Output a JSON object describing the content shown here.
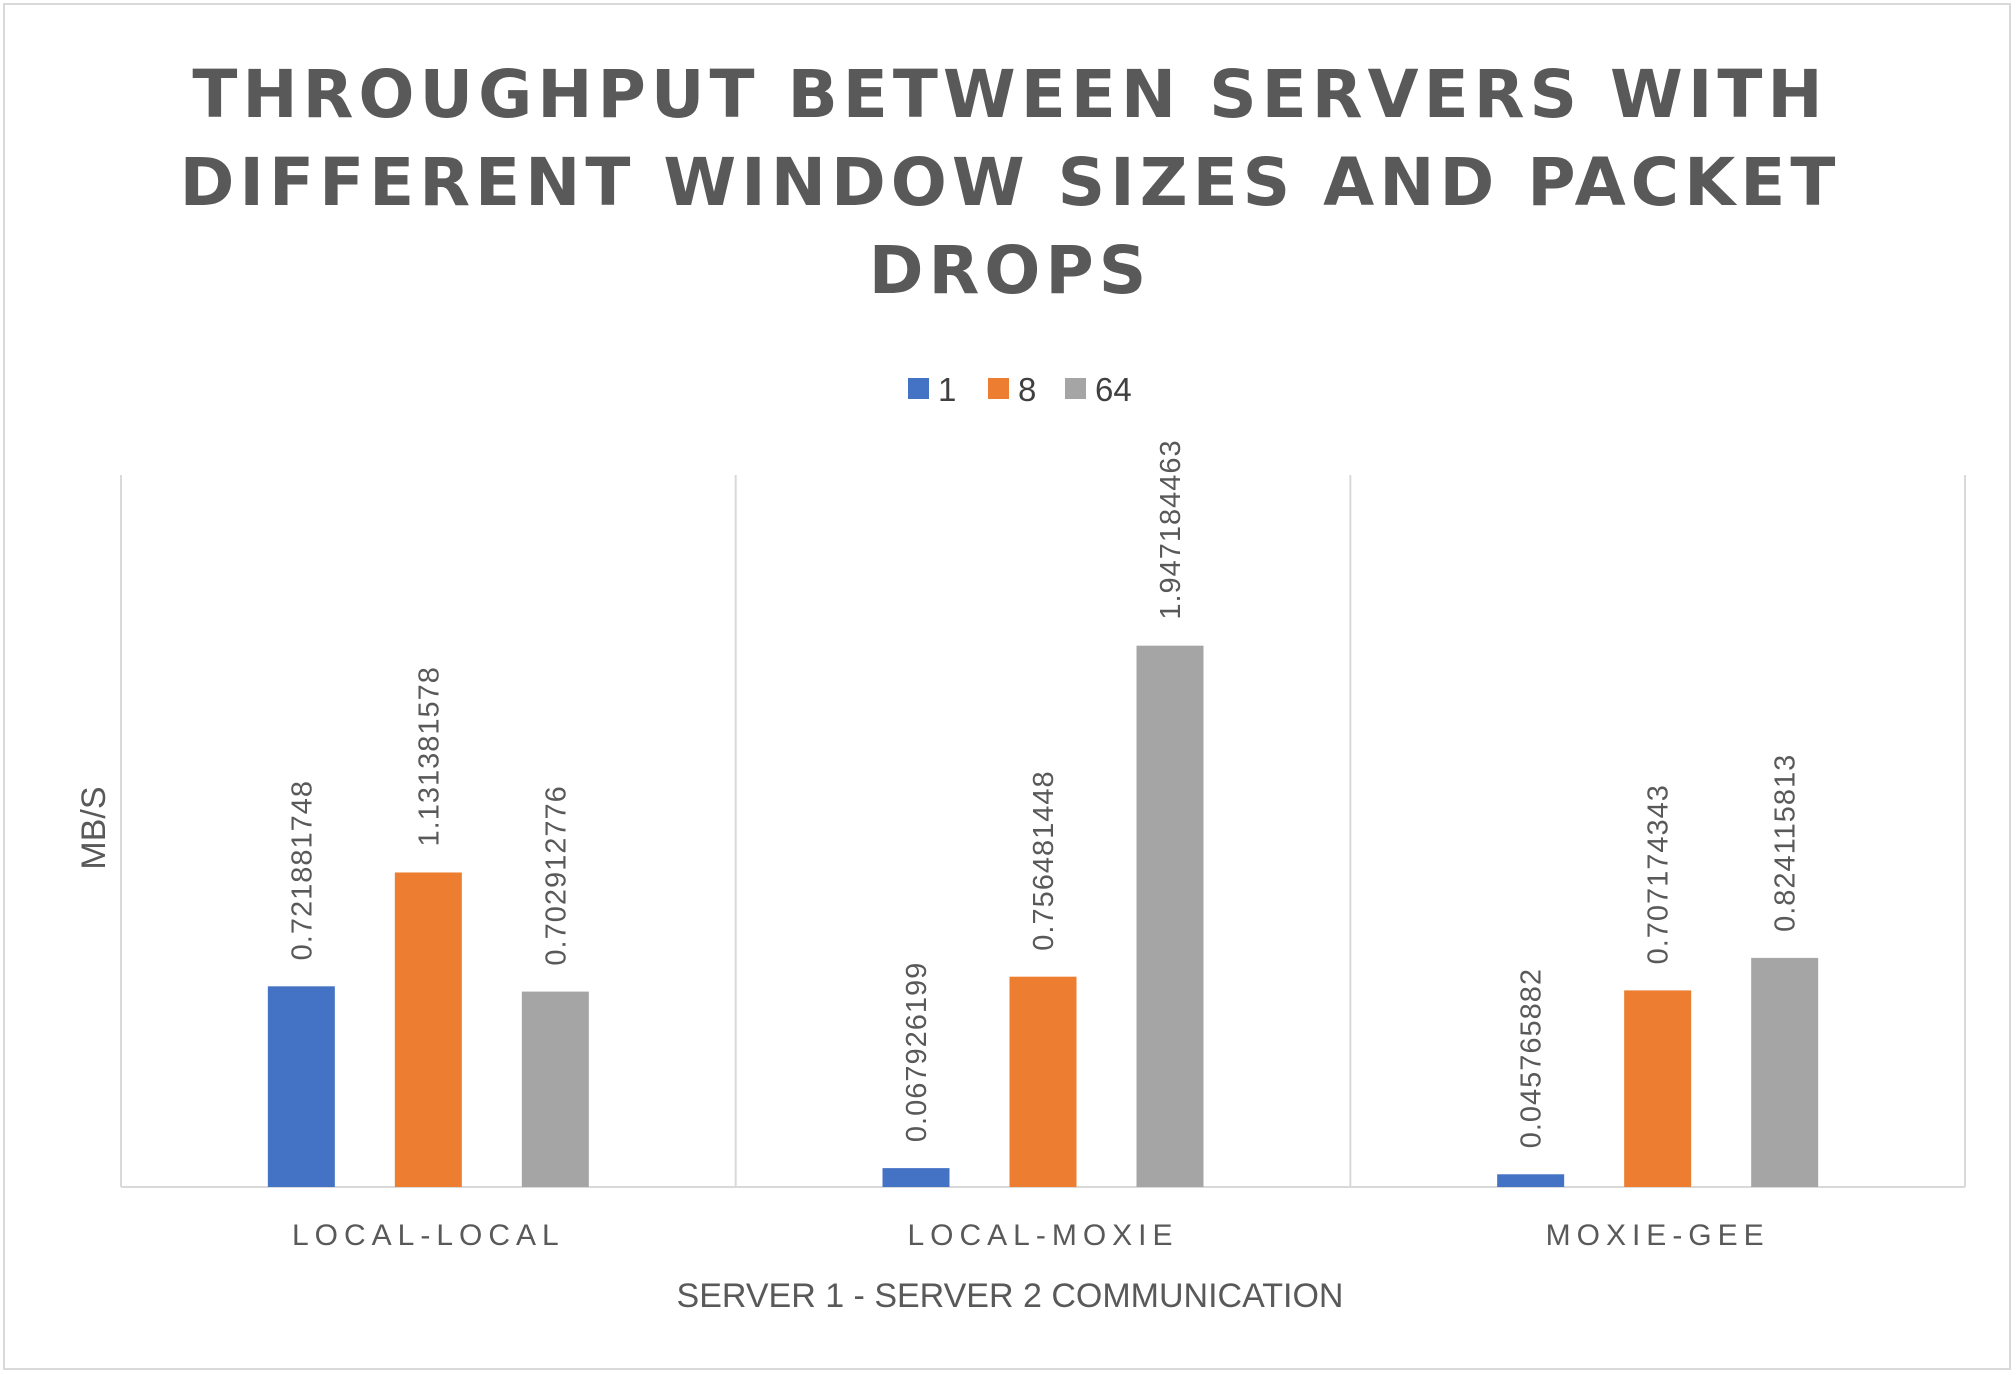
{
  "chart_data": {
    "type": "bar",
    "title": "THROUGHPUT BETWEEN SERVERS WITH DIFFERENT WINDOW SIZES AND PACKET DROPS",
    "title_lines": [
      "THROUGHPUT BETWEEN SERVERS WITH",
      "DIFFERENT WINDOW SIZES AND PACKET",
      "DROPS"
    ],
    "xlabel": "SERVER 1 - SERVER 2 COMMUNICATION",
    "ylabel": "MB/S",
    "categories": [
      "LOCAL-LOCAL",
      "LOCAL-MOXIE",
      "MOXIE-GEE"
    ],
    "series": [
      {
        "name": "1",
        "color": "#4472c4",
        "values": [
          0.721881748,
          0.067926199,
          0.045765882
        ],
        "labels": [
          "0.721881748",
          "0.067926199",
          "0.045765882"
        ]
      },
      {
        "name": "8",
        "color": "#ed7d31",
        "values": [
          1.131381578,
          0.756481448,
          0.707174343
        ],
        "labels": [
          "1.131381578",
          "0.756481448",
          "0.707174343"
        ]
      },
      {
        "name": "64",
        "color": "#a5a5a5",
        "values": [
          0.702912776,
          1.947184463,
          0.824115813
        ],
        "labels": [
          "0.702912776",
          "1.947184463",
          "0.824115813"
        ]
      }
    ],
    "ylim": [
      0,
      2.5
    ],
    "grid": false,
    "category_separators": true,
    "legend_position": "top-center"
  }
}
